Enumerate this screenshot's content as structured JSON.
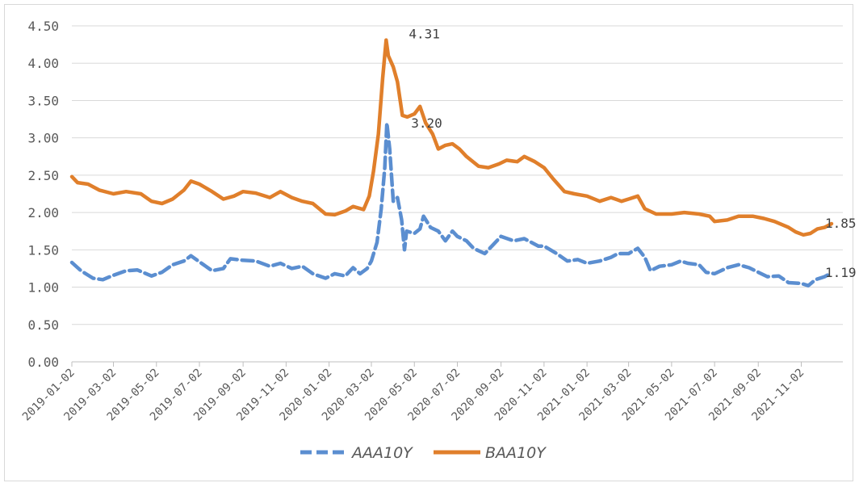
{
  "chart_data": {
    "type": "line",
    "title": "",
    "xlabel": "",
    "ylabel": "",
    "ylim": [
      0,
      4.5
    ],
    "yticks": [
      "0.00",
      "0.50",
      "1.00",
      "1.50",
      "2.00",
      "2.50",
      "3.00",
      "3.50",
      "4.00",
      "4.50"
    ],
    "xticks": [
      "2019-01-02",
      "2019-03-02",
      "2019-05-02",
      "2019-07-02",
      "2019-09-02",
      "2019-11-02",
      "2020-01-02",
      "2020-03-02",
      "2020-05-02",
      "2020-07-02",
      "2020-09-02",
      "2020-11-02",
      "2021-01-02",
      "2021-03-02",
      "2021-05-02",
      "2021-07-02",
      "2021-09-02",
      "2021-11-02"
    ],
    "xlim": [
      "2019-01-02",
      "2021-12-31"
    ],
    "grid": "horizontal",
    "legend": "bottom",
    "series": [
      {
        "name": "AAA10Y",
        "color": "#5b8ed0",
        "style": "dashed",
        "points": [
          [
            "2019-01-02",
            1.33
          ],
          [
            "2019-01-15",
            1.22
          ],
          [
            "2019-02-01",
            1.12
          ],
          [
            "2019-02-15",
            1.1
          ],
          [
            "2019-03-02",
            1.16
          ],
          [
            "2019-03-20",
            1.22
          ],
          [
            "2019-04-05",
            1.23
          ],
          [
            "2019-04-25",
            1.15
          ],
          [
            "2019-05-10",
            1.2
          ],
          [
            "2019-05-25",
            1.3
          ],
          [
            "2019-06-10",
            1.35
          ],
          [
            "2019-06-20",
            1.42
          ],
          [
            "2019-07-05",
            1.32
          ],
          [
            "2019-07-20",
            1.22
          ],
          [
            "2019-08-05",
            1.25
          ],
          [
            "2019-08-15",
            1.38
          ],
          [
            "2019-09-02",
            1.36
          ],
          [
            "2019-09-20",
            1.35
          ],
          [
            "2019-10-10",
            1.28
          ],
          [
            "2019-10-25",
            1.32
          ],
          [
            "2019-11-10",
            1.25
          ],
          [
            "2019-11-25",
            1.28
          ],
          [
            "2019-12-10",
            1.18
          ],
          [
            "2019-12-28",
            1.12
          ],
          [
            "2020-01-10",
            1.18
          ],
          [
            "2020-01-25",
            1.15
          ],
          [
            "2020-02-05",
            1.26
          ],
          [
            "2020-02-15",
            1.18
          ],
          [
            "2020-02-25",
            1.25
          ],
          [
            "2020-03-02",
            1.35
          ],
          [
            "2020-03-10",
            1.6
          ],
          [
            "2020-03-16",
            2.05
          ],
          [
            "2020-03-21",
            2.6
          ],
          [
            "2020-03-24",
            3.2
          ],
          [
            "2020-03-28",
            2.85
          ],
          [
            "2020-04-02",
            2.15
          ],
          [
            "2020-04-08",
            2.2
          ],
          [
            "2020-04-14",
            1.9
          ],
          [
            "2020-04-18",
            1.5
          ],
          [
            "2020-04-21",
            1.75
          ],
          [
            "2020-05-02",
            1.72
          ],
          [
            "2020-05-10",
            1.78
          ],
          [
            "2020-05-15",
            1.95
          ],
          [
            "2020-05-25",
            1.8
          ],
          [
            "2020-06-05",
            1.75
          ],
          [
            "2020-06-15",
            1.62
          ],
          [
            "2020-06-25",
            1.75
          ],
          [
            "2020-07-02",
            1.68
          ],
          [
            "2020-07-15",
            1.62
          ],
          [
            "2020-07-25",
            1.52
          ],
          [
            "2020-08-10",
            1.45
          ],
          [
            "2020-08-20",
            1.55
          ],
          [
            "2020-09-02",
            1.68
          ],
          [
            "2020-09-20",
            1.62
          ],
          [
            "2020-10-05",
            1.65
          ],
          [
            "2020-10-15",
            1.6
          ],
          [
            "2020-10-25",
            1.55
          ],
          [
            "2020-11-02",
            1.55
          ],
          [
            "2020-11-20",
            1.45
          ],
          [
            "2020-12-05",
            1.35
          ],
          [
            "2020-12-20",
            1.37
          ],
          [
            "2021-01-02",
            1.32
          ],
          [
            "2021-01-20",
            1.35
          ],
          [
            "2021-02-05",
            1.4
          ],
          [
            "2021-02-15",
            1.45
          ],
          [
            "2021-03-02",
            1.45
          ],
          [
            "2021-03-15",
            1.52
          ],
          [
            "2021-03-25",
            1.4
          ],
          [
            "2021-04-02",
            1.22
          ],
          [
            "2021-04-15",
            1.28
          ],
          [
            "2021-05-02",
            1.3
          ],
          [
            "2021-05-15",
            1.35
          ],
          [
            "2021-05-25",
            1.32
          ],
          [
            "2021-06-10",
            1.3
          ],
          [
            "2021-06-20",
            1.2
          ],
          [
            "2021-07-02",
            1.18
          ],
          [
            "2021-07-20",
            1.26
          ],
          [
            "2021-08-05",
            1.3
          ],
          [
            "2021-08-20",
            1.26
          ],
          [
            "2021-09-02",
            1.2
          ],
          [
            "2021-09-15",
            1.14
          ],
          [
            "2021-10-01",
            1.15
          ],
          [
            "2021-10-15",
            1.06
          ],
          [
            "2021-11-02",
            1.05
          ],
          [
            "2021-11-12",
            1.02
          ],
          [
            "2021-11-22",
            1.1
          ],
          [
            "2021-12-05",
            1.14
          ],
          [
            "2021-12-15",
            1.19
          ]
        ]
      },
      {
        "name": "BAA10Y",
        "color": "#e07f2b",
        "style": "solid",
        "points": [
          [
            "2019-01-02",
            2.48
          ],
          [
            "2019-01-10",
            2.4
          ],
          [
            "2019-01-25",
            2.38
          ],
          [
            "2019-02-10",
            2.3
          ],
          [
            "2019-03-02",
            2.25
          ],
          [
            "2019-03-20",
            2.28
          ],
          [
            "2019-04-10",
            2.25
          ],
          [
            "2019-04-25",
            2.15
          ],
          [
            "2019-05-10",
            2.12
          ],
          [
            "2019-05-25",
            2.18
          ],
          [
            "2019-06-10",
            2.3
          ],
          [
            "2019-06-20",
            2.42
          ],
          [
            "2019-07-02",
            2.38
          ],
          [
            "2019-07-20",
            2.28
          ],
          [
            "2019-08-05",
            2.18
          ],
          [
            "2019-08-20",
            2.22
          ],
          [
            "2019-09-02",
            2.28
          ],
          [
            "2019-09-20",
            2.26
          ],
          [
            "2019-10-10",
            2.2
          ],
          [
            "2019-10-25",
            2.28
          ],
          [
            "2019-11-10",
            2.2
          ],
          [
            "2019-11-25",
            2.15
          ],
          [
            "2019-12-10",
            2.12
          ],
          [
            "2019-12-28",
            1.98
          ],
          [
            "2020-01-10",
            1.97
          ],
          [
            "2020-01-25",
            2.02
          ],
          [
            "2020-02-05",
            2.08
          ],
          [
            "2020-02-20",
            2.04
          ],
          [
            "2020-02-28",
            2.22
          ],
          [
            "2020-03-05",
            2.55
          ],
          [
            "2020-03-12",
            3.05
          ],
          [
            "2020-03-18",
            3.8
          ],
          [
            "2020-03-23",
            4.31
          ],
          [
            "2020-03-26",
            4.1
          ],
          [
            "2020-04-02",
            3.95
          ],
          [
            "2020-04-08",
            3.75
          ],
          [
            "2020-04-15",
            3.3
          ],
          [
            "2020-04-22",
            3.28
          ],
          [
            "2020-05-02",
            3.32
          ],
          [
            "2020-05-10",
            3.42
          ],
          [
            "2020-05-18",
            3.2
          ],
          [
            "2020-05-28",
            3.05
          ],
          [
            "2020-06-05",
            2.85
          ],
          [
            "2020-06-15",
            2.9
          ],
          [
            "2020-06-25",
            2.92
          ],
          [
            "2020-07-05",
            2.85
          ],
          [
            "2020-07-15",
            2.75
          ],
          [
            "2020-08-01",
            2.62
          ],
          [
            "2020-08-15",
            2.6
          ],
          [
            "2020-08-30",
            2.65
          ],
          [
            "2020-09-10",
            2.7
          ],
          [
            "2020-09-25",
            2.68
          ],
          [
            "2020-10-05",
            2.75
          ],
          [
            "2020-10-20",
            2.68
          ],
          [
            "2020-11-02",
            2.6
          ],
          [
            "2020-11-15",
            2.45
          ],
          [
            "2020-12-01",
            2.28
          ],
          [
            "2020-12-15",
            2.25
          ],
          [
            "2021-01-02",
            2.22
          ],
          [
            "2021-01-20",
            2.15
          ],
          [
            "2021-02-05",
            2.2
          ],
          [
            "2021-02-20",
            2.15
          ],
          [
            "2021-03-02",
            2.18
          ],
          [
            "2021-03-15",
            2.22
          ],
          [
            "2021-03-25",
            2.05
          ],
          [
            "2021-04-10",
            1.98
          ],
          [
            "2021-05-02",
            1.98
          ],
          [
            "2021-05-20",
            2.0
          ],
          [
            "2021-06-10",
            1.98
          ],
          [
            "2021-06-25",
            1.95
          ],
          [
            "2021-07-02",
            1.88
          ],
          [
            "2021-07-20",
            1.9
          ],
          [
            "2021-08-05",
            1.95
          ],
          [
            "2021-08-25",
            1.95
          ],
          [
            "2021-09-10",
            1.92
          ],
          [
            "2021-09-25",
            1.88
          ],
          [
            "2021-10-15",
            1.8
          ],
          [
            "2021-10-25",
            1.74
          ],
          [
            "2021-11-05",
            1.7
          ],
          [
            "2021-11-15",
            1.72
          ],
          [
            "2021-11-25",
            1.78
          ],
          [
            "2021-12-05",
            1.8
          ],
          [
            "2021-12-15",
            1.85
          ]
        ]
      }
    ],
    "annotations": [
      {
        "text": "4.31",
        "series": "BAA10Y",
        "date": "2020-03-23",
        "value": 4.31
      },
      {
        "text": "3.20",
        "series": "AAA10Y",
        "date": "2020-03-24",
        "value": 3.2
      },
      {
        "text": "1.85",
        "series": "BAA10Y",
        "date": "2021-12-15",
        "value": 1.85
      },
      {
        "text": "1.19",
        "series": "AAA10Y",
        "date": "2021-12-15",
        "value": 1.19
      }
    ]
  }
}
